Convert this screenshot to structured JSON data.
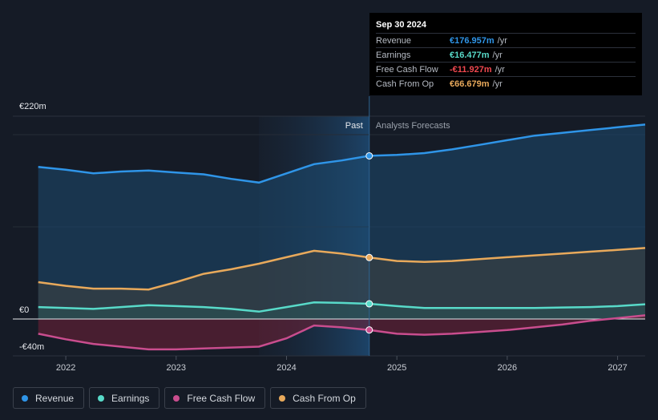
{
  "chart_data": {
    "type": "area",
    "title": "",
    "xlabel": "",
    "ylabel": "",
    "ylim": [
      -40,
      220
    ],
    "x_ticks": [
      2022,
      2023,
      2024,
      2025,
      2026,
      2027
    ],
    "x_tick_labels": [
      "2022",
      "2023",
      "2024",
      "2025",
      "2026",
      "2027"
    ],
    "y_tick_labels": [
      {
        "value": 220,
        "label": "€220m"
      },
      {
        "value": 0,
        "label": "€0"
      },
      {
        "value": -40,
        "label": "-€40m"
      }
    ],
    "past_label": "Past",
    "forecast_label": "Analysts Forecasts",
    "past_start": 2023.75,
    "divider": 2024.75,
    "series": [
      {
        "name": "Revenue",
        "color": "#2f95e8",
        "x": [
          2021.75,
          2022.0,
          2022.25,
          2022.5,
          2022.75,
          2023.0,
          2023.25,
          2023.5,
          2023.75,
          2024.0,
          2024.25,
          2024.5,
          2024.75,
          2025.0,
          2025.25,
          2025.5,
          2025.75,
          2026.0,
          2026.25,
          2026.5,
          2026.75,
          2027.0,
          2027.25
        ],
        "values": [
          165,
          162,
          158,
          160,
          161,
          159,
          157,
          152,
          148,
          158,
          168,
          172,
          177,
          178,
          180,
          184,
          189,
          194,
          199,
          202,
          205,
          208,
          211
        ]
      },
      {
        "name": "Earnings",
        "color": "#58dac9",
        "x": [
          2021.75,
          2022.0,
          2022.25,
          2022.5,
          2022.75,
          2023.0,
          2023.25,
          2023.5,
          2023.75,
          2024.0,
          2024.25,
          2024.5,
          2024.75,
          2025.0,
          2025.25,
          2025.5,
          2025.75,
          2026.0,
          2026.25,
          2026.5,
          2026.75,
          2027.0,
          2027.25
        ],
        "values": [
          13,
          12,
          11,
          13,
          15,
          14,
          13,
          11,
          8,
          13,
          18,
          17.5,
          16.5,
          14,
          12,
          12,
          12,
          12,
          12,
          12.5,
          13,
          14,
          16
        ]
      },
      {
        "name": "Free Cash Flow",
        "color": "#c94d8e",
        "x": [
          2021.75,
          2022.0,
          2022.25,
          2022.5,
          2022.75,
          2023.0,
          2023.25,
          2023.5,
          2023.75,
          2024.0,
          2024.25,
          2024.5,
          2024.75,
          2025.0,
          2025.25,
          2025.5,
          2025.75,
          2026.0,
          2026.25,
          2026.5,
          2026.75,
          2027.0,
          2027.25
        ],
        "values": [
          -16,
          -22,
          -27,
          -30,
          -33,
          -33,
          -32,
          -31,
          -30,
          -21,
          -7,
          -9,
          -11.9,
          -16,
          -17,
          -16,
          -14,
          -12,
          -9,
          -6,
          -2,
          1,
          4
        ]
      },
      {
        "name": "Cash From Op",
        "color": "#e8a95b",
        "x": [
          2021.75,
          2022.0,
          2022.25,
          2022.5,
          2022.75,
          2023.0,
          2023.25,
          2023.5,
          2023.75,
          2024.0,
          2024.25,
          2024.5,
          2024.75,
          2025.0,
          2025.25,
          2025.5,
          2025.75,
          2026.0,
          2026.25,
          2026.5,
          2026.75,
          2027.0,
          2027.25
        ],
        "values": [
          40,
          36,
          33,
          33,
          32,
          40,
          49,
          54,
          60,
          67,
          74,
          71,
          66.7,
          63,
          62,
          63,
          65,
          67,
          69,
          71,
          73,
          75,
          77
        ]
      }
    ]
  },
  "tooltip": {
    "date": "Sep 30 2024",
    "rows": [
      {
        "label": "Revenue",
        "value": "€176.957m",
        "unit": "/yr",
        "color": "#2f95e8"
      },
      {
        "label": "Earnings",
        "value": "€16.477m",
        "unit": "/yr",
        "color": "#58dac9"
      },
      {
        "label": "Free Cash Flow",
        "value": "-€11.927m",
        "unit": "/yr",
        "color": "#f0484f"
      },
      {
        "label": "Cash From Op",
        "value": "€66.679m",
        "unit": "/yr",
        "color": "#e8a95b"
      }
    ]
  },
  "legend": {
    "items": [
      {
        "label": "Revenue",
        "color": "#2f95e8"
      },
      {
        "label": "Earnings",
        "color": "#58dac9"
      },
      {
        "label": "Free Cash Flow",
        "color": "#c94d8e"
      },
      {
        "label": "Cash From Op",
        "color": "#e8a95b"
      }
    ]
  }
}
